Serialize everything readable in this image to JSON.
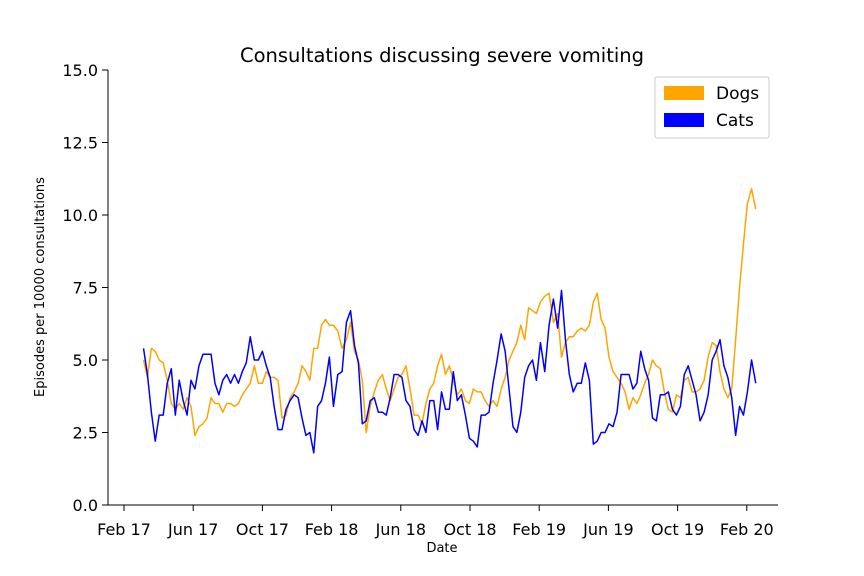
{
  "chart_data": {
    "type": "line",
    "title": "Consultations discussing severe vomiting",
    "xlabel": "Date",
    "ylabel": "Episodes per 10000 consultations",
    "ylim": [
      0,
      15
    ],
    "yticks": [
      "0.0",
      "2.5",
      "5.0",
      "7.5",
      "10.0",
      "12.5",
      "15.0"
    ],
    "xticks": [
      "Feb 17",
      "Jun 17",
      "Oct 17",
      "Feb 18",
      "Jun 18",
      "Oct 18",
      "Feb 19",
      "Jun 19",
      "Oct 19",
      "Feb 20"
    ],
    "x_start": "2017-03-05",
    "x_step_weeks": 1,
    "grid": false,
    "legend": {
      "position": "top-right",
      "entries": [
        "Dogs",
        "Cats"
      ]
    },
    "colors": {
      "Dogs": "#ffa500",
      "Cats": "#0000ff"
    },
    "series": [
      {
        "name": "Dogs",
        "values": [
          5.0,
          4.4,
          5.4,
          5.3,
          5.0,
          4.9,
          4.3,
          3.5,
          3.3,
          3.5,
          3.3,
          3.7,
          3.4,
          2.4,
          2.7,
          2.8,
          3.0,
          3.7,
          3.5,
          3.5,
          3.2,
          3.5,
          3.5,
          3.4,
          3.5,
          3.8,
          4.0,
          4.2,
          4.8,
          4.2,
          4.2,
          4.6,
          4.4,
          4.4,
          4.3,
          3.0,
          3.1,
          3.7,
          3.9,
          4.2,
          4.8,
          4.6,
          4.3,
          5.4,
          5.4,
          6.2,
          6.4,
          6.2,
          6.2,
          6.0,
          5.4,
          5.7,
          6.3,
          5.3,
          5.0,
          4.3,
          2.5,
          3.4,
          3.9,
          4.3,
          4.5,
          4.0,
          3.6,
          4.0,
          4.4,
          4.5,
          4.8,
          4.0,
          3.1,
          3.1,
          2.8,
          3.5,
          4.0,
          4.2,
          4.8,
          5.2,
          4.5,
          4.8,
          4.3,
          3.8,
          4.0,
          3.6,
          3.5,
          4.0,
          3.9,
          3.9,
          3.6,
          3.4,
          3.6,
          3.4,
          4.0,
          4.4,
          5.0,
          5.3,
          5.6,
          6.2,
          5.7,
          6.8,
          6.7,
          6.6,
          7.0,
          7.2,
          7.3,
          6.3,
          6.6,
          5.1,
          5.6,
          5.8,
          5.8,
          6.0,
          6.1,
          6.0,
          6.2,
          7.0,
          7.3,
          6.4,
          6.1,
          5.1,
          4.6,
          4.4,
          4.2,
          3.9,
          3.3,
          3.7,
          3.5,
          3.8,
          4.2,
          4.5,
          5.0,
          4.8,
          4.7,
          3.9,
          3.3,
          3.2,
          3.8,
          3.7,
          4.3,
          4.4,
          3.9,
          3.9,
          4.0,
          4.3,
          5.1,
          5.6,
          5.5,
          4.6,
          4.0,
          3.7,
          4.0,
          5.7,
          7.5,
          9.0,
          10.4,
          10.9,
          10.2
        ]
      },
      {
        "name": "Cats",
        "values": [
          5.4,
          4.5,
          3.2,
          2.2,
          3.1,
          3.1,
          4.2,
          4.7,
          3.1,
          4.3,
          3.6,
          3.1,
          4.3,
          4.0,
          4.8,
          5.2,
          5.2,
          5.2,
          4.2,
          3.8,
          4.3,
          4.5,
          4.2,
          4.5,
          4.2,
          4.6,
          4.9,
          5.8,
          5.0,
          5.0,
          5.3,
          4.8,
          4.4,
          3.4,
          2.6,
          2.6,
          3.3,
          3.6,
          3.8,
          3.7,
          3.0,
          2.4,
          2.5,
          1.8,
          3.4,
          3.6,
          4.2,
          5.1,
          3.4,
          4.5,
          4.6,
          6.3,
          6.7,
          5.5,
          4.9,
          2.8,
          2.9,
          3.6,
          3.7,
          3.2,
          3.2,
          3.1,
          3.7,
          4.5,
          4.5,
          4.4,
          3.6,
          3.4,
          2.6,
          2.4,
          2.9,
          2.5,
          3.6,
          3.6,
          2.6,
          3.9,
          3.3,
          3.3,
          4.6,
          3.6,
          3.8,
          3.1,
          2.3,
          2.2,
          2.0,
          3.1,
          3.1,
          3.2,
          4.2,
          5.0,
          5.9,
          5.3,
          4.0,
          2.7,
          2.5,
          3.2,
          4.4,
          4.8,
          5.0,
          4.3,
          5.6,
          4.6,
          6.2,
          7.1,
          6.1,
          7.4,
          5.7,
          4.5,
          3.9,
          4.2,
          4.2,
          4.9,
          4.3,
          2.1,
          2.2,
          2.5,
          2.5,
          2.8,
          2.7,
          3.2,
          4.5,
          4.5,
          4.5,
          4.0,
          4.2,
          5.3,
          4.7,
          4.3,
          3.0,
          2.9,
          3.8,
          3.8,
          3.9,
          3.3,
          3.1,
          3.4,
          4.5,
          4.8,
          4.3,
          3.8,
          2.9,
          3.2,
          3.8,
          5.0,
          5.3,
          5.7,
          4.8,
          4.4,
          3.7,
          2.4,
          3.4,
          3.1,
          3.9,
          5.0,
          4.2
        ]
      }
    ]
  }
}
